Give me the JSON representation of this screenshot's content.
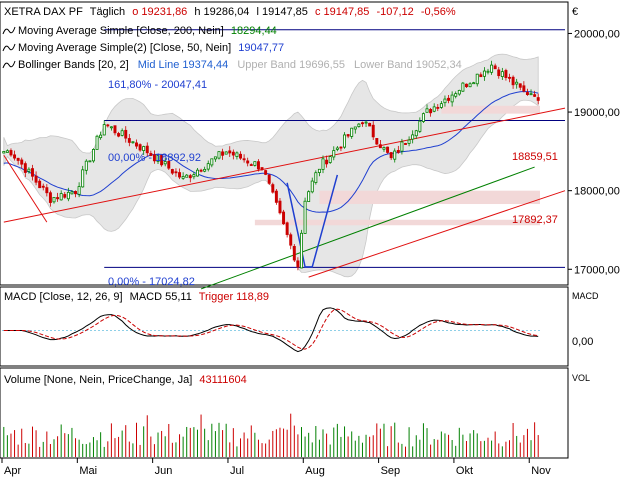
{
  "header": {
    "symbol": "XETRA DAX PF",
    "period": "Täglich",
    "open": "o 19231,86",
    "high": "h 19286,04",
    "low": "l 19147,85",
    "close": "c 19147,85",
    "change": "-107,12",
    "change_pct": "-0,56%",
    "currency": "€"
  },
  "indicators": {
    "ma200_label": "Moving Average Simple [Close, 200, Nein]",
    "ma200_value": "18294,44",
    "ma50_label": "Moving Average Simple(2) [Close, 50, Nein]",
    "ma50_value": "19047,77",
    "bb_label": "Bollinger Bands [20, 2]",
    "bb_mid": "Mid Line 19374,44",
    "bb_upper": "Upper Band 19696,55",
    "bb_lower": "Lower Band 19052,34"
  },
  "annotations": {
    "fib_1618": "161,80% - 20047,41",
    "fib_100": "00,00% - 18892,92",
    "fib_0": "0,00% - 17024,82",
    "level_a": "18859,51",
    "level_b": "17892,37"
  },
  "macd": {
    "label": "MACD [Close, 12, 26, 9]",
    "value": "MACD 55,11",
    "trigger": "Trigger 118,89",
    "axis_name": "MACD",
    "zero_label": "0,00"
  },
  "volume": {
    "label": "Volume [None, Nein, PriceChange, Ja]",
    "value": "43111604",
    "axis_name": "VOL"
  },
  "colors": {
    "up": "#008000",
    "down": "#cc0000",
    "ma200": "#008000",
    "ma50": "#1f3fd0",
    "bb_fill": "#e6e6e6",
    "trend": "#e01010",
    "fib": "#000080"
  },
  "chart_data": {
    "type": "candlestick",
    "price_axis": {
      "ticks": [
        "20000,00",
        "19000,00",
        "18000,00",
        "17000,00"
      ],
      "range": [
        16800,
        20400
      ]
    },
    "months": [
      "Apr",
      "Mai",
      "Jun",
      "Jul",
      "Aug",
      "Sep",
      "Okt",
      "Nov"
    ],
    "anchors": [
      [
        "Apr",
        18500
      ],
      [
        "Apr",
        17900
      ],
      [
        "Mai",
        18000
      ],
      [
        "Mai",
        18850
      ],
      [
        "Jun",
        18500
      ],
      [
        "Jun",
        18150
      ],
      [
        "Jul",
        18500
      ],
      [
        "Jul",
        18300
      ],
      [
        "Aug",
        17050
      ],
      [
        "Aug",
        17900
      ],
      [
        "Aug",
        18300
      ],
      [
        "Sep",
        18900
      ],
      [
        "Sep",
        18400
      ],
      [
        "Okt",
        19000
      ],
      [
        "Okt",
        19600
      ],
      [
        "Nov",
        19250
      ]
    ],
    "last_close": 19147.85,
    "macd_axis": {
      "ticks": [
        "0,00"
      ]
    }
  }
}
